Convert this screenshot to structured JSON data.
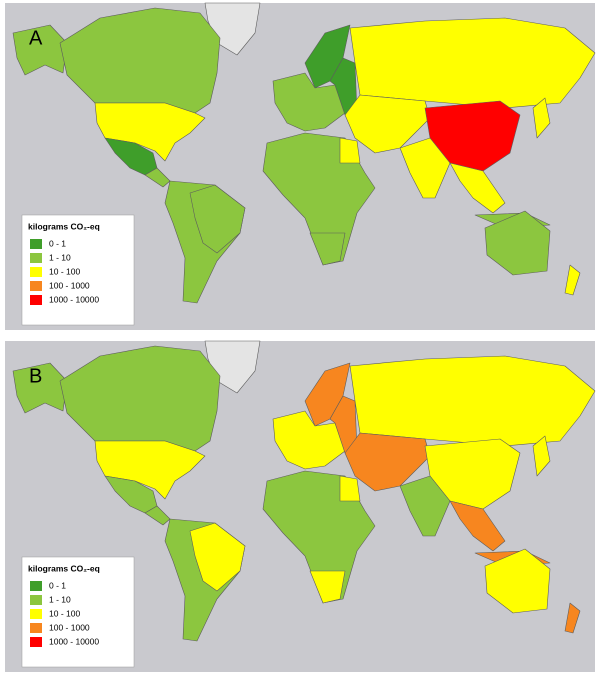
{
  "panels": [
    {
      "label": "A",
      "legend": {
        "title": "kilograms CO₂-eq",
        "items": [
          {
            "label": "0 - 1",
            "color": "#3f9e2a"
          },
          {
            "label": "1 - 10",
            "color": "#8cc63f"
          },
          {
            "label": "10 - 100",
            "color": "#ffff00"
          },
          {
            "label": "100 - 1000",
            "color": "#f7861f"
          },
          {
            "label": "1000 - 10000",
            "color": "#ff0000"
          }
        ]
      }
    },
    {
      "label": "B",
      "legend": {
        "title": "kilograms CO₂-eq",
        "items": [
          {
            "label": "0 - 1",
            "color": "#3f9e2a"
          },
          {
            "label": "1 - 10",
            "color": "#8cc63f"
          },
          {
            "label": "10 - 100",
            "color": "#ffff00"
          },
          {
            "label": "100 - 1000",
            "color": "#f7861f"
          },
          {
            "label": "1000 - 10000",
            "color": "#ff0000"
          }
        ]
      }
    }
  ]
}
